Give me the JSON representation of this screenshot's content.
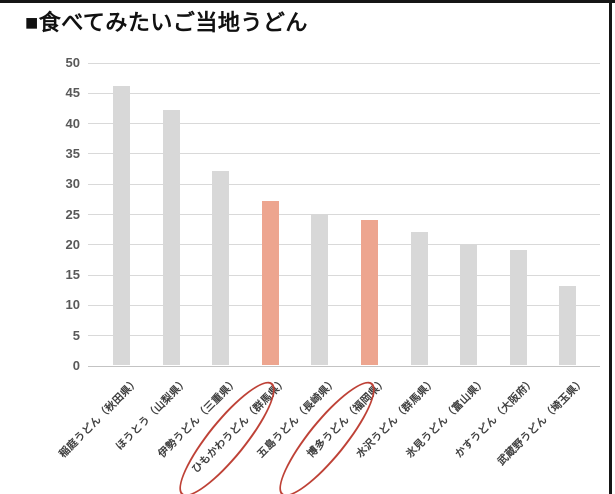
{
  "title": "■食べてみたいご当地うどん",
  "chart_data": {
    "type": "bar",
    "title": "食べてみたいご当地うどん",
    "categories": [
      "稲庭うどん（秋田県）",
      "ほうとう（山梨県）",
      "伊勢うどん（三重県）",
      "ひもかわうどん（群馬県）",
      "五島うどん（長崎県）",
      "博多うどん（福岡県）",
      "水沢うどん（群馬県）",
      "氷見うどん（富山県）",
      "かすうどん（大阪府）",
      "武蔵野うどん（埼玉県）"
    ],
    "values": [
      46,
      42,
      32,
      27,
      25,
      24,
      22,
      20,
      19,
      13
    ],
    "highlight_indices": [
      3,
      5
    ],
    "circled_indices": [
      3,
      5
    ],
    "y_ticks": [
      0,
      5,
      10,
      15,
      20,
      25,
      30,
      35,
      40,
      45,
      50
    ],
    "ylim": [
      0,
      50
    ],
    "grid": true,
    "legend": "none",
    "xlabel": "",
    "ylabel": "",
    "colors": {
      "bar_default": "#d8d8d8",
      "bar_highlight": "#eda58f",
      "circle_stroke": "#be4136",
      "gridline": "#d9d9d9",
      "axis_line": "#c3c3c3",
      "tick_text": "#595959",
      "category_text": "#3f3f3f"
    }
  }
}
